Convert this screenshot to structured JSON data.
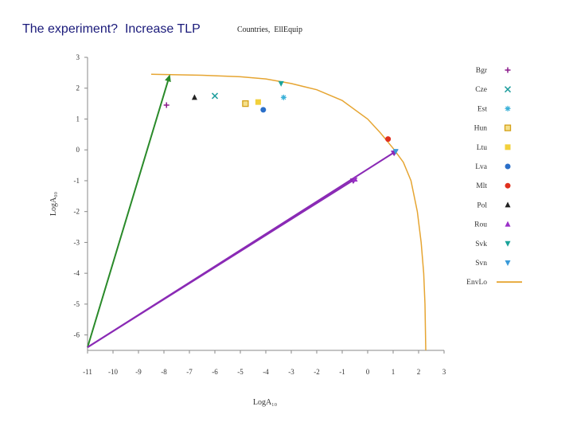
{
  "slide": {
    "title": "The experiment?  Increase TLP"
  },
  "chart_data": {
    "type": "scatter",
    "title": "Countries,  EllEquip",
    "xlabel": "LogA₁₀",
    "ylabel": "LogA₀₀",
    "xlim": [
      -11,
      3
    ],
    "ylim": [
      -6.5,
      3
    ],
    "x_ticks": [
      -11,
      -10,
      -9,
      -8,
      -7,
      -6,
      -5,
      -4,
      -3,
      -2,
      -1,
      0,
      1,
      2,
      3
    ],
    "y_ticks": [
      3,
      2,
      1,
      0,
      -1,
      -2,
      -3,
      -4,
      -5,
      -6
    ],
    "grid": false,
    "legend_position": "right",
    "series": [
      {
        "name": "Bgr",
        "marker": "plus",
        "color": "#8b1a8b",
        "points": [
          [
            -7.9,
            1.45
          ]
        ]
      },
      {
        "name": "Cze",
        "marker": "x",
        "color": "#1f9e9e",
        "points": [
          [
            -6.0,
            1.75
          ]
        ]
      },
      {
        "name": "Est",
        "marker": "asterisk",
        "color": "#3ab0d8",
        "points": [
          [
            -3.3,
            1.7
          ]
        ]
      },
      {
        "name": "Hun",
        "marker": "square-open",
        "color": "#d4a017",
        "points": [
          [
            -4.8,
            1.5
          ]
        ]
      },
      {
        "name": "Ltu",
        "marker": "square",
        "color": "#f2d03b",
        "points": [
          [
            -4.3,
            1.55
          ]
        ]
      },
      {
        "name": "Lva",
        "marker": "circle",
        "color": "#2a6fc9",
        "points": [
          [
            -4.1,
            1.3
          ]
        ]
      },
      {
        "name": "Mlt",
        "marker": "circle",
        "color": "#e0301e",
        "points": [
          [
            0.8,
            0.35
          ]
        ]
      },
      {
        "name": "Pol",
        "marker": "triangle-up",
        "color": "#222222",
        "points": [
          [
            -6.8,
            1.7
          ]
        ]
      },
      {
        "name": "Rou",
        "marker": "triangle-up",
        "color": "#9b30c8",
        "points": [
          [
            -0.5,
            -0.95
          ]
        ]
      },
      {
        "name": "Svk",
        "marker": "triangle-down",
        "color": "#1aa39a",
        "points": [
          [
            -3.4,
            2.15
          ]
        ]
      },
      {
        "name": "Svn",
        "marker": "triangle-down",
        "color": "#3a9ad9",
        "points": [
          [
            1.1,
            -0.05
          ]
        ]
      },
      {
        "name": "EnvLo",
        "marker": "line",
        "color": "#e6a532",
        "points": [
          [
            -8.5,
            2.45
          ],
          [
            -6.5,
            2.42
          ],
          [
            -5,
            2.37
          ],
          [
            -4,
            2.3
          ],
          [
            -3,
            2.15
          ],
          [
            -2,
            1.95
          ],
          [
            -1,
            1.6
          ],
          [
            0,
            1.0
          ],
          [
            0.5,
            0.55
          ],
          [
            1,
            0.05
          ],
          [
            1.4,
            -0.4
          ],
          [
            1.7,
            -1.0
          ],
          [
            1.95,
            -2.0
          ],
          [
            2.1,
            -3.0
          ],
          [
            2.2,
            -4.0
          ],
          [
            2.25,
            -5.0
          ],
          [
            2.28,
            -6.5
          ]
        ]
      }
    ],
    "annotations": [
      {
        "type": "arrow",
        "color": "#2a8a2a",
        "from": [
          -11,
          -6.4
        ],
        "to": [
          -7.8,
          2.35
        ]
      },
      {
        "type": "arrow",
        "color": "#8a2ab5",
        "from": [
          -11,
          -6.4
        ],
        "to": [
          -0.5,
          -0.95
        ]
      },
      {
        "type": "arrow",
        "color": "#8a2ab5",
        "from": [
          -11,
          -6.4
        ],
        "to": [
          1.1,
          -0.05
        ]
      }
    ]
  }
}
